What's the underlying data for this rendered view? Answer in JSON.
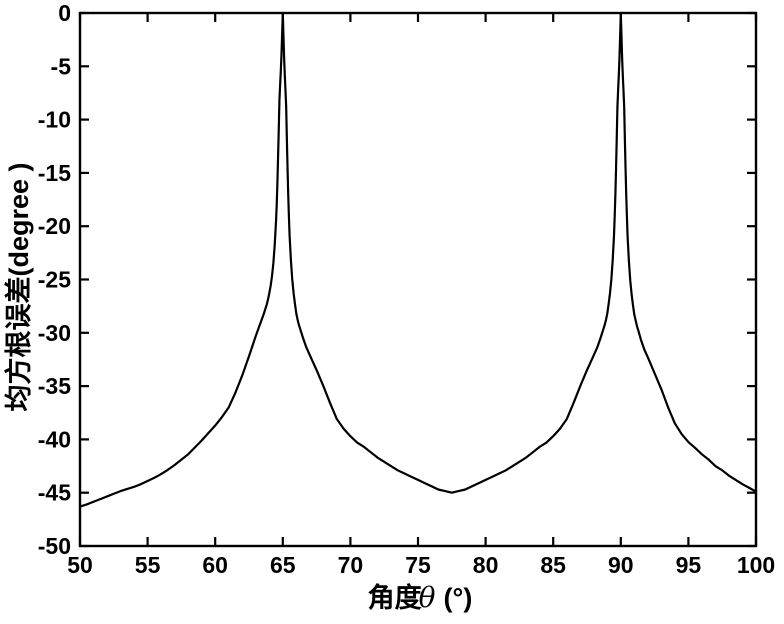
{
  "figure": {
    "background": "#ffffff",
    "ink_color": "#000000"
  },
  "chart_data": {
    "type": "line",
    "title": "",
    "xlabel": "角度θ (°)",
    "xlabel_prefix": "角度",
    "xlabel_theta": "θ",
    "xlabel_suffix": "(°)",
    "ylabel": "均方根误差(degree )",
    "xlim": [
      50,
      100
    ],
    "ylim": [
      -50,
      0
    ],
    "x_ticks": [
      50,
      55,
      60,
      65,
      70,
      75,
      80,
      85,
      90,
      95,
      100
    ],
    "y_ticks": [
      0,
      -5,
      -10,
      -15,
      -20,
      -25,
      -30,
      -35,
      -40,
      -45,
      -50
    ],
    "grid": false,
    "box": true,
    "legend": null,
    "line_color": "#000000",
    "peaks_x": [
      65,
      90
    ],
    "valley": {
      "x": 77.5,
      "y": -45
    },
    "series": [
      {
        "points": [
          [
            50,
            -46.3
          ],
          [
            50.5,
            -46.1
          ],
          [
            51,
            -45.85
          ],
          [
            51.5,
            -45.6
          ],
          [
            52,
            -45.35
          ],
          [
            52.5,
            -45.1
          ],
          [
            53,
            -44.85
          ],
          [
            53.5,
            -44.65
          ],
          [
            54,
            -44.45
          ],
          [
            54.5,
            -44.2
          ],
          [
            55,
            -43.9
          ],
          [
            55.5,
            -43.6
          ],
          [
            56,
            -43.25
          ],
          [
            56.5,
            -42.85
          ],
          [
            57,
            -42.4
          ],
          [
            57.5,
            -41.9
          ],
          [
            58,
            -41.4
          ],
          [
            58.5,
            -40.75
          ],
          [
            59,
            -40.1
          ],
          [
            59.5,
            -39.4
          ],
          [
            60,
            -38.7
          ],
          [
            60.5,
            -37.9
          ],
          [
            61,
            -37
          ],
          [
            61.5,
            -35.6
          ],
          [
            62,
            -34
          ],
          [
            62.5,
            -32.2
          ],
          [
            63,
            -30.3
          ],
          [
            63.2,
            -29.6
          ],
          [
            63.4,
            -28.9
          ],
          [
            63.6,
            -28.2
          ],
          [
            63.8,
            -27.4
          ],
          [
            63.9,
            -26.9
          ],
          [
            64,
            -26.3
          ],
          [
            64.1,
            -25.6
          ],
          [
            64.2,
            -24.7
          ],
          [
            64.3,
            -23.5
          ],
          [
            64.4,
            -21.8
          ],
          [
            64.5,
            -19.5
          ],
          [
            64.55,
            -18
          ],
          [
            64.6,
            -16
          ],
          [
            64.65,
            -13.5
          ],
          [
            64.7,
            -11
          ],
          [
            64.75,
            -8.2
          ],
          [
            64.8,
            -6.8
          ],
          [
            64.85,
            -5.5
          ],
          [
            64.9,
            -4
          ],
          [
            64.95,
            -2
          ],
          [
            65,
            -0.1
          ],
          [
            65.05,
            -2.2
          ],
          [
            65.1,
            -4.3
          ],
          [
            65.15,
            -5.9
          ],
          [
            65.2,
            -7.3
          ],
          [
            65.25,
            -8.8
          ],
          [
            65.3,
            -11.8
          ],
          [
            65.35,
            -14.5
          ],
          [
            65.4,
            -17
          ],
          [
            65.45,
            -19
          ],
          [
            65.5,
            -20.8
          ],
          [
            65.6,
            -23.2
          ],
          [
            65.7,
            -25
          ],
          [
            65.8,
            -26.3
          ],
          [
            65.9,
            -27.3
          ],
          [
            66,
            -28.2
          ],
          [
            66.1,
            -28.8
          ],
          [
            66.2,
            -29.3
          ],
          [
            66.3,
            -29.7
          ],
          [
            66.5,
            -30.5
          ],
          [
            66.75,
            -31.4
          ],
          [
            67,
            -32.1
          ],
          [
            67.25,
            -32.8
          ],
          [
            67.5,
            -33.5
          ],
          [
            67.8,
            -34.4
          ],
          [
            68,
            -35
          ],
          [
            68.5,
            -36.6
          ],
          [
            69,
            -38.1
          ],
          [
            69.5,
            -39
          ],
          [
            70,
            -39.7
          ],
          [
            70.5,
            -40.3
          ],
          [
            71,
            -40.7
          ],
          [
            71.5,
            -41.2
          ],
          [
            72,
            -41.7
          ],
          [
            72.5,
            -42.1
          ],
          [
            73,
            -42.5
          ],
          [
            73.5,
            -42.9
          ],
          [
            74,
            -43.2
          ],
          [
            74.5,
            -43.5
          ],
          [
            75,
            -43.8
          ],
          [
            75.5,
            -44.1
          ],
          [
            76,
            -44.4
          ],
          [
            76.5,
            -44.7
          ],
          [
            77,
            -44.85
          ],
          [
            77.5,
            -45
          ],
          [
            78,
            -44.85
          ],
          [
            78.5,
            -44.7
          ],
          [
            79,
            -44.4
          ],
          [
            79.5,
            -44.1
          ],
          [
            80,
            -43.8
          ],
          [
            80.5,
            -43.5
          ],
          [
            81,
            -43.2
          ],
          [
            81.5,
            -42.9
          ],
          [
            82,
            -42.5
          ],
          [
            82.5,
            -42.1
          ],
          [
            83,
            -41.7
          ],
          [
            83.5,
            -41.2
          ],
          [
            84,
            -40.7
          ],
          [
            84.5,
            -40.3
          ],
          [
            85,
            -39.7
          ],
          [
            85.5,
            -39
          ],
          [
            86,
            -38.1
          ],
          [
            86.5,
            -36.6
          ],
          [
            87,
            -35
          ],
          [
            87.2,
            -34.4
          ],
          [
            87.5,
            -33.5
          ],
          [
            87.75,
            -32.8
          ],
          [
            88,
            -32.1
          ],
          [
            88.25,
            -31.4
          ],
          [
            88.5,
            -30.5
          ],
          [
            88.7,
            -29.7
          ],
          [
            88.8,
            -29.3
          ],
          [
            88.9,
            -28.8
          ],
          [
            89,
            -28.2
          ],
          [
            89.1,
            -27.3
          ],
          [
            89.2,
            -26.3
          ],
          [
            89.3,
            -25
          ],
          [
            89.4,
            -23.2
          ],
          [
            89.5,
            -20.8
          ],
          [
            89.55,
            -19
          ],
          [
            89.6,
            -17
          ],
          [
            89.65,
            -14.5
          ],
          [
            89.7,
            -11.8
          ],
          [
            89.75,
            -8.8
          ],
          [
            89.8,
            -7.3
          ],
          [
            89.85,
            -5.9
          ],
          [
            89.9,
            -4.3
          ],
          [
            89.95,
            -2.2
          ],
          [
            90,
            -0.1
          ],
          [
            90.05,
            -2.2
          ],
          [
            90.1,
            -4.3
          ],
          [
            90.15,
            -5.9
          ],
          [
            90.2,
            -7.3
          ],
          [
            90.25,
            -8.8
          ],
          [
            90.3,
            -11.8
          ],
          [
            90.35,
            -14.5
          ],
          [
            90.4,
            -17
          ],
          [
            90.45,
            -19
          ],
          [
            90.5,
            -20.9
          ],
          [
            90.6,
            -23.3
          ],
          [
            90.7,
            -25.1
          ],
          [
            90.8,
            -26.4
          ],
          [
            90.9,
            -27.4
          ],
          [
            91,
            -28.3
          ],
          [
            91.2,
            -29.4
          ],
          [
            91.3,
            -29.8
          ],
          [
            91.5,
            -30.7
          ],
          [
            91.75,
            -31.6
          ],
          [
            92,
            -32.3
          ],
          [
            92.5,
            -33.8
          ],
          [
            93,
            -35.3
          ],
          [
            93.5,
            -37
          ],
          [
            94,
            -38.5
          ],
          [
            94.5,
            -39.5
          ],
          [
            95,
            -40.25
          ],
          [
            95.5,
            -40.8
          ],
          [
            96,
            -41.4
          ],
          [
            96.5,
            -41.9
          ],
          [
            97,
            -42.5
          ],
          [
            97.5,
            -42.9
          ],
          [
            98,
            -43.4
          ],
          [
            98.5,
            -43.8
          ],
          [
            99,
            -44.2
          ],
          [
            99.5,
            -44.55
          ],
          [
            100,
            -44.9
          ]
        ]
      }
    ]
  }
}
